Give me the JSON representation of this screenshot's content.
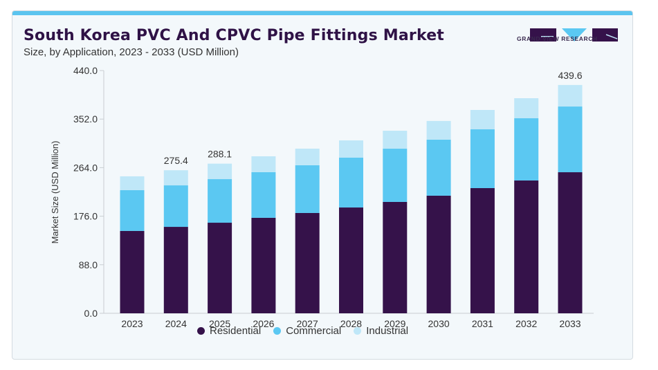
{
  "header": {
    "title": "South Korea PVC And CPVC Pipe Fittings Market",
    "subtitle": "Size, by Application, 2023 - 2033 (USD Million)",
    "brand": "GRAND VIEW RESEARCH"
  },
  "colors": {
    "Residential": "#35124a",
    "Commercial": "#5bc8f2",
    "Industrial": "#bfe7f8",
    "accent": "#5bc4ef",
    "title": "#2f1246"
  },
  "chart_data": {
    "type": "bar",
    "stacked": true,
    "title": "South Korea PVC And CPVC Pipe Fittings Market",
    "subtitle": "Size, by Application, 2023 - 2033 (USD Million)",
    "xlabel": "",
    "ylabel": "Market Size (USD Million)",
    "ylim": [
      0,
      440
    ],
    "yticks": [
      "0.0",
      "88.0",
      "176.0",
      "264.0",
      "352.0",
      "440.0"
    ],
    "categories": [
      "2023",
      "2024",
      "2025",
      "2026",
      "2027",
      "2028",
      "2029",
      "2030",
      "2031",
      "2032",
      "2033"
    ],
    "series": [
      {
        "name": "Residential",
        "values": [
          158.5,
          166.4,
          174.4,
          183.8,
          193.1,
          203.7,
          214.4,
          226.4,
          241.0,
          255.7,
          271.6
        ]
      },
      {
        "name": "Commercial",
        "values": [
          78.6,
          79.9,
          83.9,
          87.9,
          91.9,
          95.9,
          102.5,
          107.9,
          113.2,
          119.8,
          126.5
        ]
      },
      {
        "name": "Industrial",
        "values": [
          26.6,
          29.1,
          29.8,
          30.6,
          32.0,
          33.3,
          34.6,
          36.0,
          37.3,
          38.6,
          41.5
        ]
      }
    ],
    "annotations": [
      {
        "category": "2024",
        "text": "275.4"
      },
      {
        "category": "2025",
        "text": "288.1"
      },
      {
        "category": "2033",
        "text": "439.6"
      }
    ],
    "legend": [
      "Residential",
      "Commercial",
      "Industrial"
    ],
    "legend_position": "bottom",
    "grid": false
  }
}
